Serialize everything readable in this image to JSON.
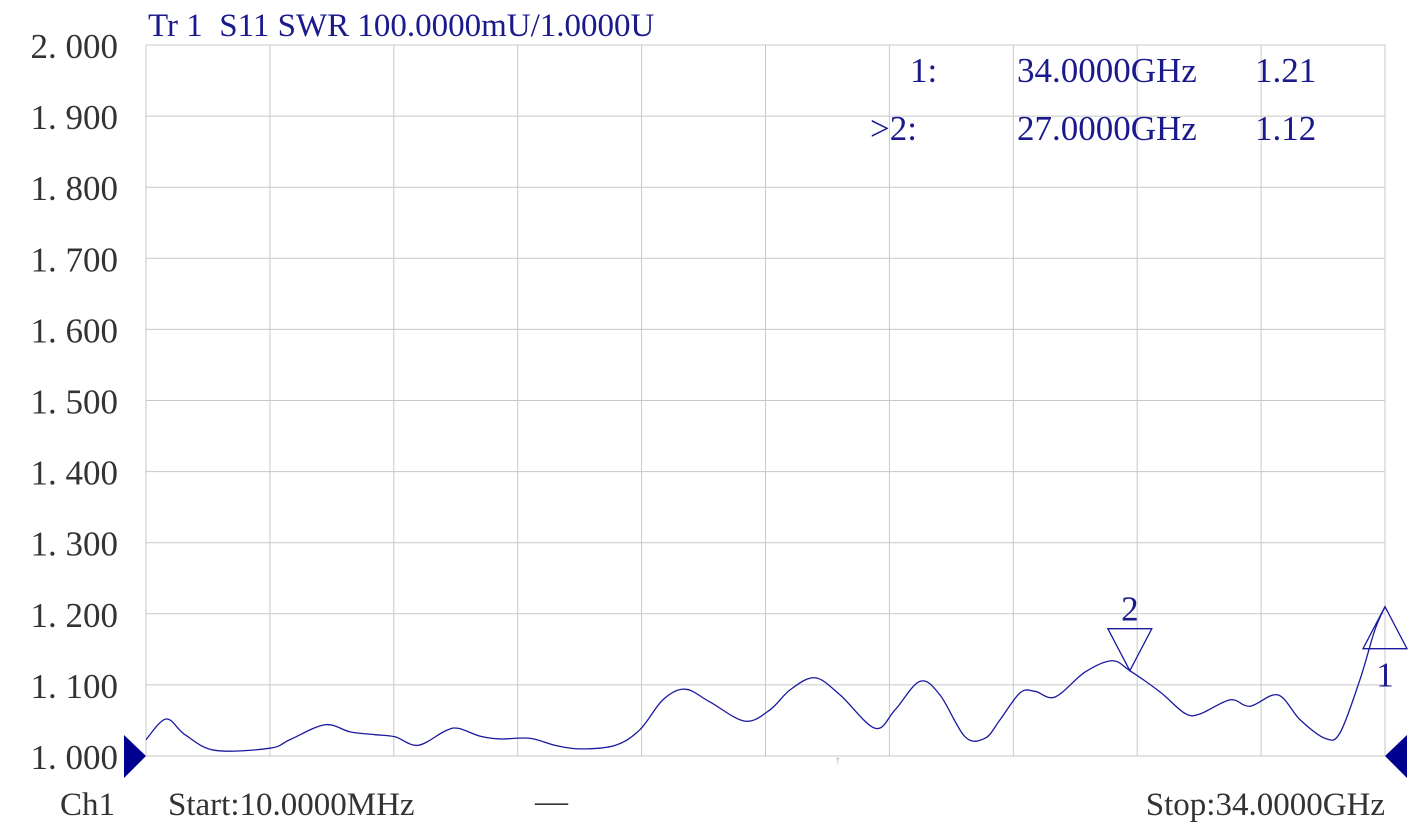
{
  "header": {
    "title": "Tr 1  S11 SWR 100.0000mU/1.0000U"
  },
  "markers_readout": [
    {
      "label": "1:",
      "freq": "34.0000GHz",
      "value": "1.21",
      "active": false
    },
    {
      "label": ">2:",
      "freq": "27.0000GHz",
      "value": "1.12",
      "active": true
    }
  ],
  "footer": {
    "channel": "Ch1",
    "start": "Start:10.0000MHz",
    "start_suffix": "—",
    "stop": "Stop:34.0000GHz"
  },
  "colors": {
    "trace": "#1a1aa0",
    "grid": "#c8c8c8",
    "marker_fill": "#000090",
    "text": "#1a1a8c"
  },
  "chart_data": {
    "type": "line",
    "title": "Tr 1  S11 SWR 100.0000mU/1.0000U",
    "xlabel": "",
    "ylabel": "",
    "xlim": [
      0.01,
      34.0
    ],
    "x_unit": "GHz",
    "ylim": [
      1.0,
      2.0
    ],
    "grid": true,
    "x_divisions": 10,
    "yticks": [
      "2.000",
      "1.900",
      "1.800",
      "1.700",
      "1.600",
      "1.500",
      "1.400",
      "1.300",
      "1.200",
      "1.100",
      "1.000"
    ],
    "x": [
      0.01,
      0.56,
      1.08,
      1.9,
      3.41,
      3.96,
      4.92,
      5.61,
      6.29,
      6.84,
      7.47,
      8.21,
      8.57,
      9.17,
      9.72,
      10.54,
      11.23,
      11.92,
      12.88,
      13.56,
      14.19,
      14.8,
      15.48,
      16.44,
      17.13,
      17.68,
      18.36,
      19.05,
      20.01,
      20.56,
      21.24,
      21.79,
      22.48,
      23.03,
      23.44,
      23.99,
      24.4,
      24.95,
      25.77,
      26.51,
      27.0,
      27.83,
      28.51,
      28.92,
      29.75,
      30.3,
      31.06,
      31.67,
      32.35,
      32.76,
      33.31,
      33.72,
      34.0
    ],
    "y": [
      1.023,
      1.052,
      1.03,
      1.008,
      1.011,
      1.023,
      1.044,
      1.034,
      1.03,
      1.027,
      1.015,
      1.035,
      1.039,
      1.028,
      1.024,
      1.025,
      1.015,
      1.01,
      1.015,
      1.037,
      1.079,
      1.094,
      1.076,
      1.049,
      1.065,
      1.093,
      1.11,
      1.086,
      1.039,
      1.065,
      1.105,
      1.086,
      1.027,
      1.025,
      1.051,
      1.089,
      1.091,
      1.083,
      1.118,
      1.134,
      1.12,
      1.09,
      1.06,
      1.059,
      1.079,
      1.07,
      1.086,
      1.051,
      1.025,
      1.032,
      1.107,
      1.177,
      1.21
    ],
    "markers": [
      {
        "id": "1",
        "x": 34.0,
        "y": 1.21,
        "direction": "up"
      },
      {
        "id": "2",
        "x": 27.0,
        "y": 1.12,
        "direction": "down"
      }
    ]
  }
}
